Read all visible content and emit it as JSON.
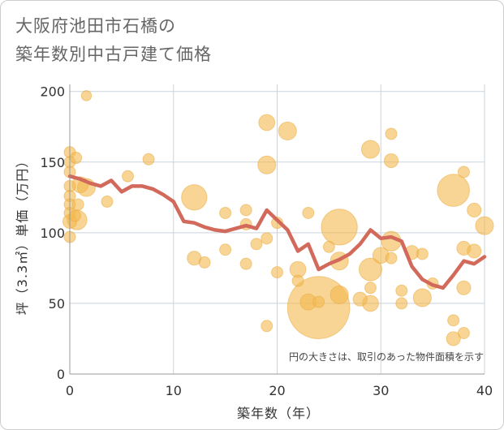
{
  "chart_data": {
    "type": "scatter",
    "title_lines": [
      "大阪府池田市石橋の",
      "築年数別中古戸建て価格"
    ],
    "xlabel": "築年数（年）",
    "ylabel": "坪（3.3㎡）単価（万円）",
    "xlim": [
      0,
      40
    ],
    "ylim": [
      0,
      205
    ],
    "xticks": [
      0,
      10,
      20,
      30,
      40
    ],
    "yticks": [
      0,
      50,
      100,
      150,
      200
    ],
    "grid": true,
    "note": "円の大きさは、取引のあった物件面積を示す",
    "colors": {
      "bubble": "#f3b94f",
      "bubble_edge": "#e8a838",
      "line": "#d2695a"
    },
    "bubble_series": [
      {
        "x": 0,
        "y": 157,
        "size": 1
      },
      {
        "x": 0,
        "y": 150,
        "size": 1
      },
      {
        "x": 0,
        "y": 143,
        "size": 1
      },
      {
        "x": 0,
        "y": 133,
        "size": 1
      },
      {
        "x": 0,
        "y": 126,
        "size": 1
      },
      {
        "x": 0,
        "y": 120,
        "size": 1
      },
      {
        "x": 0,
        "y": 114,
        "size": 1
      },
      {
        "x": 0,
        "y": 108,
        "size": 1.5
      },
      {
        "x": 0,
        "y": 97,
        "size": 1
      },
      {
        "x": 0.5,
        "y": 112,
        "size": 1
      },
      {
        "x": 0.8,
        "y": 120,
        "size": 1
      },
      {
        "x": 0.6,
        "y": 153,
        "size": 1
      },
      {
        "x": 1,
        "y": 134,
        "size": 2
      },
      {
        "x": 0.7,
        "y": 109,
        "size": 3
      },
      {
        "x": 1.6,
        "y": 132,
        "size": 2.5
      },
      {
        "x": 1.6,
        "y": 197,
        "size": 0.8
      },
      {
        "x": 3.6,
        "y": 122,
        "size": 1
      },
      {
        "x": 5.6,
        "y": 140,
        "size": 1
      },
      {
        "x": 7.6,
        "y": 152,
        "size": 1
      },
      {
        "x": 12,
        "y": 125,
        "size": 5
      },
      {
        "x": 12,
        "y": 82,
        "size": 1.5
      },
      {
        "x": 13,
        "y": 79,
        "size": 1
      },
      {
        "x": 15,
        "y": 114,
        "size": 1
      },
      {
        "x": 15,
        "y": 88,
        "size": 1
      },
      {
        "x": 17,
        "y": 116,
        "size": 1
      },
      {
        "x": 17,
        "y": 106,
        "size": 1
      },
      {
        "x": 17,
        "y": 78,
        "size": 1
      },
      {
        "x": 18,
        "y": 92,
        "size": 1
      },
      {
        "x": 19,
        "y": 178,
        "size": 2
      },
      {
        "x": 19,
        "y": 148,
        "size": 2.5
      },
      {
        "x": 19,
        "y": 96,
        "size": 1
      },
      {
        "x": 19,
        "y": 34,
        "size": 1
      },
      {
        "x": 20,
        "y": 107,
        "size": 1
      },
      {
        "x": 20,
        "y": 72,
        "size": 1
      },
      {
        "x": 21,
        "y": 172,
        "size": 2.5
      },
      {
        "x": 22,
        "y": 74,
        "size": 2
      },
      {
        "x": 22,
        "y": 66,
        "size": 1
      },
      {
        "x": 23,
        "y": 114,
        "size": 1
      },
      {
        "x": 23,
        "y": 51,
        "size": 2
      },
      {
        "x": 24,
        "y": 47,
        "size": 30
      },
      {
        "x": 24,
        "y": 51,
        "size": 1
      },
      {
        "x": 25,
        "y": 90,
        "size": 1
      },
      {
        "x": 26,
        "y": 104,
        "size": 10
      },
      {
        "x": 26,
        "y": 80,
        "size": 2.5
      },
      {
        "x": 26,
        "y": 56,
        "size": 2.5
      },
      {
        "x": 28,
        "y": 53,
        "size": 1.5
      },
      {
        "x": 29,
        "y": 159,
        "size": 2.5
      },
      {
        "x": 29,
        "y": 74,
        "size": 4
      },
      {
        "x": 29,
        "y": 61,
        "size": 1
      },
      {
        "x": 29,
        "y": 50,
        "size": 2
      },
      {
        "x": 30,
        "y": 84,
        "size": 2
      },
      {
        "x": 31,
        "y": 170,
        "size": 1
      },
      {
        "x": 31,
        "y": 151,
        "size": 1.5
      },
      {
        "x": 31,
        "y": 94,
        "size": 3
      },
      {
        "x": 31,
        "y": 82,
        "size": 1
      },
      {
        "x": 32,
        "y": 59,
        "size": 1
      },
      {
        "x": 32,
        "y": 50,
        "size": 1
      },
      {
        "x": 33,
        "y": 86,
        "size": 1.5
      },
      {
        "x": 34,
        "y": 85,
        "size": 1
      },
      {
        "x": 34,
        "y": 54,
        "size": 2.5
      },
      {
        "x": 35,
        "y": 64,
        "size": 1
      },
      {
        "x": 37,
        "y": 130,
        "size": 8
      },
      {
        "x": 37,
        "y": 38,
        "size": 1
      },
      {
        "x": 37,
        "y": 25,
        "size": 1.5
      },
      {
        "x": 38,
        "y": 143,
        "size": 1
      },
      {
        "x": 38,
        "y": 89,
        "size": 1.5
      },
      {
        "x": 38,
        "y": 61,
        "size": 1.5
      },
      {
        "x": 38,
        "y": 29,
        "size": 1
      },
      {
        "x": 39,
        "y": 116,
        "size": 1.5
      },
      {
        "x": 39,
        "y": 87,
        "size": 1.5
      },
      {
        "x": 40,
        "y": 105,
        "size": 2.5
      }
    ],
    "line_series": {
      "x": [
        0,
        1,
        2,
        3,
        4,
        5,
        6,
        7,
        8,
        9,
        10,
        11,
        12,
        13,
        14,
        15,
        16,
        17,
        18,
        19,
        20,
        21,
        22,
        23,
        24,
        25,
        26,
        27,
        28,
        29,
        30,
        31,
        32,
        33,
        34,
        35,
        36,
        37,
        38,
        39,
        40
      ],
      "y": [
        140,
        138,
        135,
        133,
        137,
        129,
        133,
        133,
        131,
        127,
        122,
        108,
        107,
        104,
        102,
        101,
        103,
        105,
        103,
        116,
        109,
        102,
        87,
        92,
        74,
        78,
        81,
        85,
        92,
        102,
        96,
        97,
        94,
        76,
        67,
        63,
        61,
        70,
        80,
        78,
        83
      ]
    }
  }
}
